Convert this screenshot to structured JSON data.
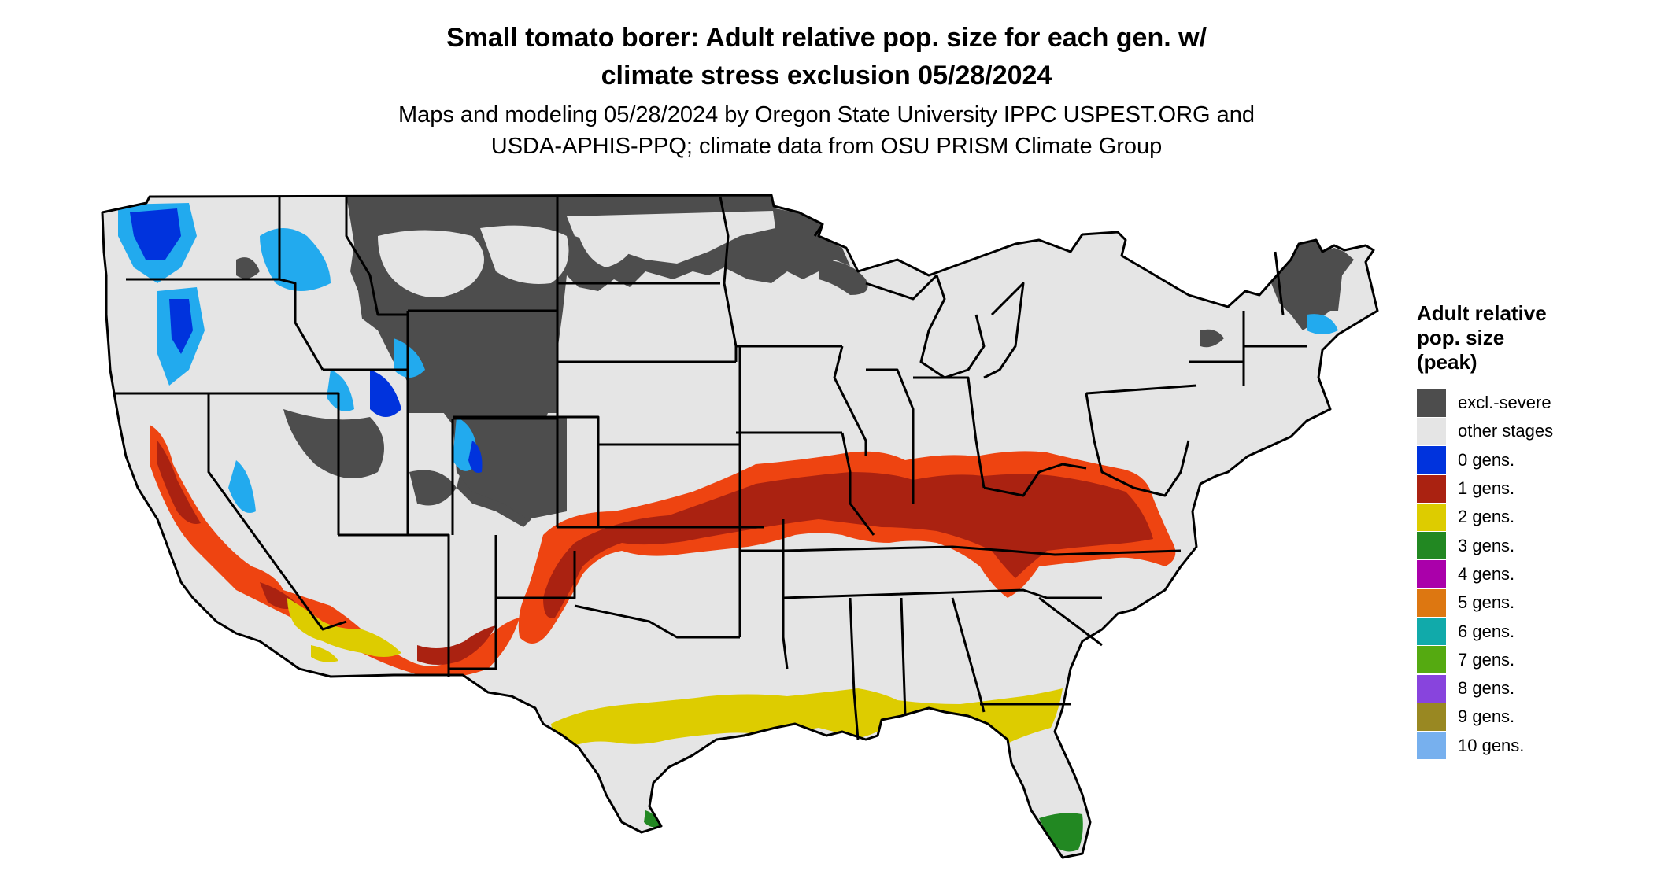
{
  "header": {
    "title_line1": "Small tomato borer: Adult relative pop. size for each gen. w/",
    "title_line2": "climate stress exclusion 05/28/2024",
    "subtitle_line1": "Maps and modeling 05/28/2024 by Oregon State University IPPC USPEST.ORG and",
    "subtitle_line2": "USDA-APHIS-PPQ; climate data from OSU PRISM Climate Group"
  },
  "legend": {
    "title_line1": "Adult relative",
    "title_line2": "pop. size",
    "title_line3": "(peak)",
    "items": [
      {
        "label": "excl.-severe",
        "color": "#4d4d4d"
      },
      {
        "label": "other stages",
        "color": "#e5e5e5"
      },
      {
        "label": "0 gens.",
        "color": "#0033dd"
      },
      {
        "label": "1 gens.",
        "color": "#aa2211"
      },
      {
        "label": "2 gens.",
        "color": "#ddcc00"
      },
      {
        "label": "3 gens.",
        "color": "#228822"
      },
      {
        "label": "4 gens.",
        "color": "#aa00aa"
      },
      {
        "label": "5 gens.",
        "color": "#dd7711"
      },
      {
        "label": "6 gens.",
        "color": "#11aaaa"
      },
      {
        "label": "7 gens.",
        "color": "#55aa11"
      },
      {
        "label": "8 gens.",
        "color": "#8844dd"
      },
      {
        "label": "9 gens.",
        "color": "#998822"
      },
      {
        "label": "10 gens.",
        "color": "#77b0ee"
      }
    ]
  },
  "map": {
    "colors": {
      "land": "#e5e5e5",
      "excluded": "#4d4d4d",
      "zero_gens": "#0033dd",
      "zero_gens_edge": "#22aaee",
      "one_gen": "#aa2211",
      "one_gen_edge": "#ee4411",
      "two_gens": "#ddcc00",
      "three_gens": "#228822",
      "borders": "#000000"
    }
  }
}
